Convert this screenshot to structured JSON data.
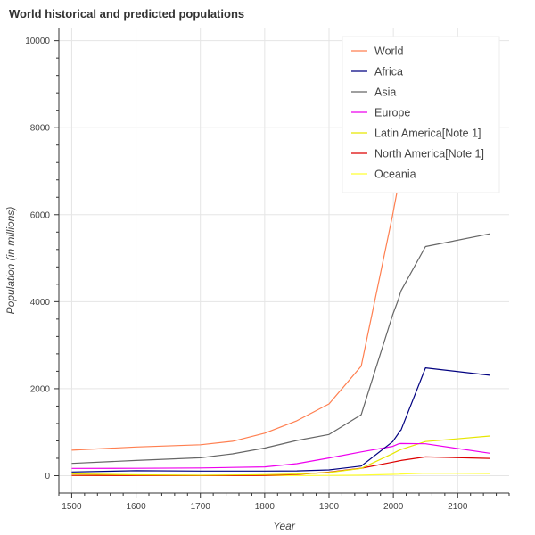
{
  "chart_data": {
    "type": "line",
    "title": "World historical and predicted populations",
    "xlabel": "Year",
    "ylabel": "Population (in millions)",
    "xlim": [
      1480,
      2180
    ],
    "ylim": [
      -400,
      10300
    ],
    "x_ticks": [
      1500,
      1600,
      1700,
      1800,
      1900,
      2000,
      2100
    ],
    "y_ticks": [
      0,
      2000,
      4000,
      6000,
      8000,
      10000
    ],
    "grid": true,
    "legend_position": "top-right",
    "x": [
      1500,
      1600,
      1700,
      1750,
      1800,
      1850,
      1900,
      1950,
      1999,
      2008,
      2010,
      2012,
      2050,
      2150
    ],
    "series": [
      {
        "name": "World",
        "color": "#ff7f50",
        "values": [
          585,
          660,
          710,
          791,
          978,
          1262,
          1650,
          2519,
          6002,
          6707,
          6896,
          7052,
          9725,
          9746
        ]
      },
      {
        "name": "Africa",
        "color": "#000080",
        "values": [
          86,
          114,
          106,
          106,
          107,
          111,
          133,
          221,
          783,
          973,
          1022,
          1052,
          2478,
          2308
        ]
      },
      {
        "name": "Asia",
        "color": "#666666",
        "values": [
          282,
          350,
          411,
          502,
          635,
          809,
          947,
          1402,
          3700,
          4054,
          4164,
          4250,
          5267,
          5561
        ]
      },
      {
        "name": "Europe",
        "color": "#ee00ee",
        "values": [
          168,
          170,
          178,
          190,
          203,
          276,
          408,
          547,
          675,
          732,
          738,
          740,
          734,
          517
        ]
      },
      {
        "name": "Latin America[Note 1]",
        "color": "#e6e600",
        "values": [
          40,
          20,
          10,
          16,
          24,
          38,
          74,
          167,
          508,
          577,
          590,
          603,
          784,
          912
        ]
      },
      {
        "name": "North America[Note 1]",
        "color": "#dd0000",
        "values": [
          6,
          3,
          2,
          2,
          7,
          26,
          82,
          172,
          312,
          337,
          345,
          351,
          433,
          398
        ]
      },
      {
        "name": "Oceania",
        "color": "#ffff33",
        "values": [
          3,
          3,
          3,
          2,
          2,
          2,
          6,
          13,
          30,
          34,
          37,
          38,
          57,
          51
        ]
      }
    ]
  }
}
